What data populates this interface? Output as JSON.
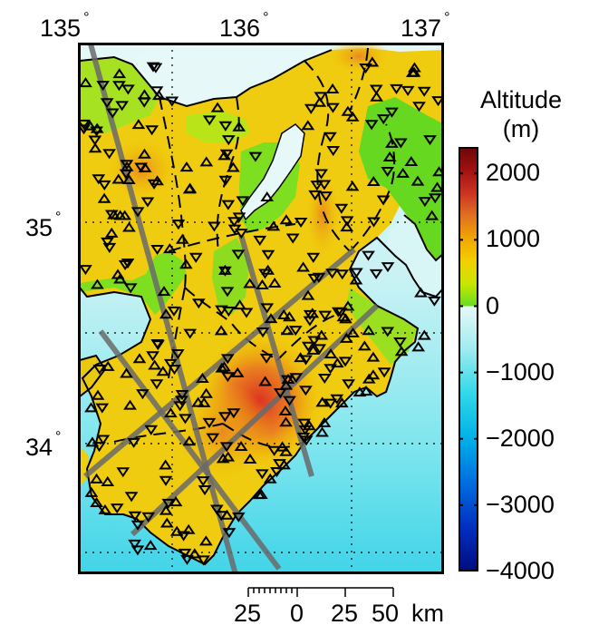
{
  "map": {
    "lon_ticks": [
      {
        "value": "135",
        "symbol": "°"
      },
      {
        "value": "136",
        "symbol": "°"
      },
      {
        "value": "137",
        "symbol": "°"
      }
    ],
    "lat_ticks": [
      {
        "value": "35",
        "symbol": "°"
      },
      {
        "value": "34",
        "symbol": "°"
      }
    ]
  },
  "colorbar": {
    "title_line1": "Altitude",
    "title_line2": "(m)",
    "min": -4000,
    "max": 2400,
    "labels": [
      "2000",
      "1000",
      "0",
      "−1000",
      "−2000",
      "−3000",
      "−4000"
    ],
    "land_colors": [
      "#66dd22",
      "#c8e600",
      "#f2d000",
      "#f2a800",
      "#e07020",
      "#cc3322",
      "#a01010",
      "#6a0808"
    ],
    "sea_colors": [
      "#e8f8f8",
      "#a0ecf0",
      "#30d8e8",
      "#00b0e8",
      "#0070e0",
      "#0030c0",
      "#000c80"
    ]
  },
  "scalebar": {
    "labels": [
      "25",
      "0",
      "25",
      "50",
      "km"
    ]
  }
}
